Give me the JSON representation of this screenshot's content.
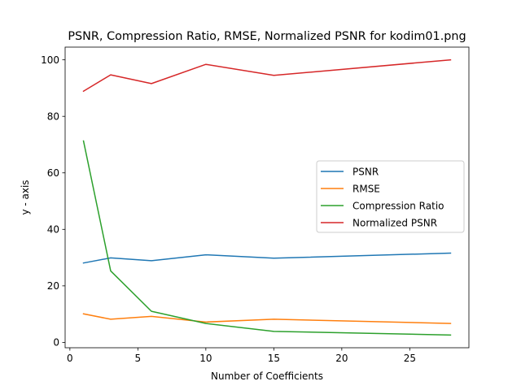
{
  "chart_data": {
    "type": "line",
    "title": "PSNR, Compression Ratio, RMSE, Normalized PSNR for kodim01.png",
    "xlabel": "Number of Coefficients",
    "ylabel": "y - axis",
    "xlim": [
      -0.35,
      29.35
    ],
    "ylim": [
      -1.9,
      104.5
    ],
    "xticks": [
      0,
      5,
      10,
      15,
      20,
      25
    ],
    "yticks": [
      0,
      20,
      40,
      60,
      80,
      100
    ],
    "grid": false,
    "legend_position": "center-right",
    "x": [
      1,
      3,
      6,
      10,
      15,
      28
    ],
    "series": [
      {
        "name": "PSNR",
        "color": "#1f77b4",
        "values": [
          28.1,
          29.9,
          28.9,
          31.0,
          29.8,
          31.6
        ]
      },
      {
        "name": "RMSE",
        "color": "#ff7f0e",
        "values": [
          10.1,
          8.2,
          9.2,
          7.2,
          8.2,
          6.7
        ]
      },
      {
        "name": "Compression Ratio",
        "color": "#2ca02c",
        "values": [
          71.3,
          25.3,
          11.0,
          6.7,
          3.9,
          2.6
        ]
      },
      {
        "name": "Normalized PSNR",
        "color": "#d62728",
        "values": [
          88.9,
          94.7,
          91.6,
          98.4,
          94.5,
          100.0
        ]
      }
    ]
  }
}
